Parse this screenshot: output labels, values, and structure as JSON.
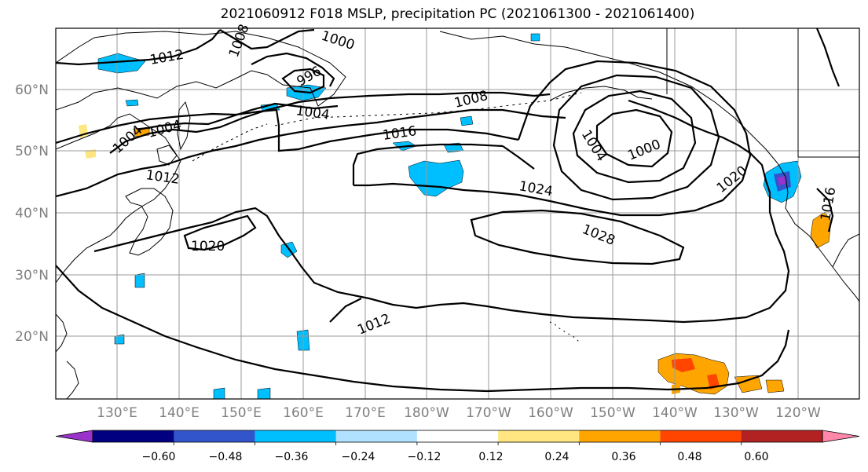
{
  "title": "2021060912 F018 MSLP, precipitation PC (2021061300 - 2021061400)",
  "lat_labels": [
    "60°N",
    "50°N",
    "40°N",
    "30°N",
    "20°N"
  ],
  "lon_labels": [
    "130°E",
    "140°E",
    "150°E",
    "160°E",
    "170°E",
    "180°W",
    "170°W",
    "160°W",
    "150°W",
    "140°W",
    "130°W",
    "120°W"
  ],
  "isobar_labels": [
    "1000",
    "1008",
    "1012",
    "996",
    "1004",
    "1008",
    "1016",
    "1004",
    "1004",
    "1012",
    "1020",
    "1024",
    "1028",
    "1012",
    "1004",
    "1000",
    "1020",
    "1016"
  ],
  "colorbar": {
    "ticks": [
      "−0.60",
      "−0.48",
      "−0.36",
      "−0.24",
      "−0.12",
      "0.12",
      "0.24",
      "0.36",
      "0.48",
      "0.60"
    ],
    "colors": [
      "#9933cc",
      "#000080",
      "#3355cc",
      "#00bfff",
      "#b0e2ff",
      "#ffffff",
      "#ffe680",
      "#ffa500",
      "#ff4500",
      "#b22222",
      "#ff88aa"
    ]
  }
}
